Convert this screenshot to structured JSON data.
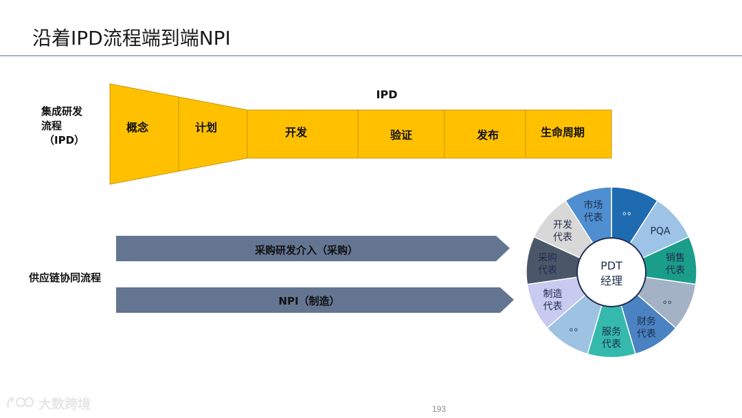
{
  "slide": {
    "title": "沿着IPD流程端到端NPI",
    "page_number": "193"
  },
  "ipd": {
    "row_label_line1": "集成研发",
    "row_label_line2": "流程",
    "row_label_line3": "（IPD）",
    "header": "IPD",
    "fill_color": "#ffc000",
    "phases": [
      "概念",
      "计划",
      "开发",
      "验证",
      "发布",
      "生命周期"
    ]
  },
  "supply_chain": {
    "row_label": "供应链协同流程",
    "arrow_color": "#647592",
    "arrows": [
      "采购研发介入（采购）",
      "NPI（制造）"
    ]
  },
  "pdt_wheel": {
    "center_line1": "PDT",
    "center_line2": "经理",
    "segments": [
      {
        "line1": "。。",
        "line2": "",
        "color": "#1f6bb1",
        "text_color": "#ffffff"
      },
      {
        "line1": "PQA",
        "line2": "",
        "color": "#9dc3e6",
        "text_color": "#1f2d4d"
      },
      {
        "line1": "销售",
        "line2": "代表",
        "color": "#1a9e8a",
        "text_color": "#1f2d4d"
      },
      {
        "line1": "。。",
        "line2": "",
        "color": "#a3b2c4",
        "text_color": "#1f2d4d"
      },
      {
        "line1": "财务",
        "line2": "代表",
        "color": "#4a82c2",
        "text_color": "#1f2d4d"
      },
      {
        "line1": "服务",
        "line2": "代表",
        "color": "#35b9ad",
        "text_color": "#1f2d4d"
      },
      {
        "line1": "。。",
        "line2": "",
        "color": "#9ec2e2",
        "text_color": "#1f2d4d"
      },
      {
        "line1": "制造",
        "line2": "代表",
        "color": "#c9caf0",
        "text_color": "#1f2d4d"
      },
      {
        "line1": "采购",
        "line2": "代表",
        "color": "#4a5769",
        "text_color": "#1f2d4d"
      },
      {
        "line1": "开发",
        "line2": "代表",
        "color": "#d8d8d8",
        "text_color": "#1f2d4d"
      },
      {
        "line1": "市场",
        "line2": "代表",
        "color": "#4f8ed0",
        "text_color": "#1f2d4d"
      }
    ]
  },
  "watermark": {
    "logo": "I😊",
    "text": "大数跨境"
  }
}
